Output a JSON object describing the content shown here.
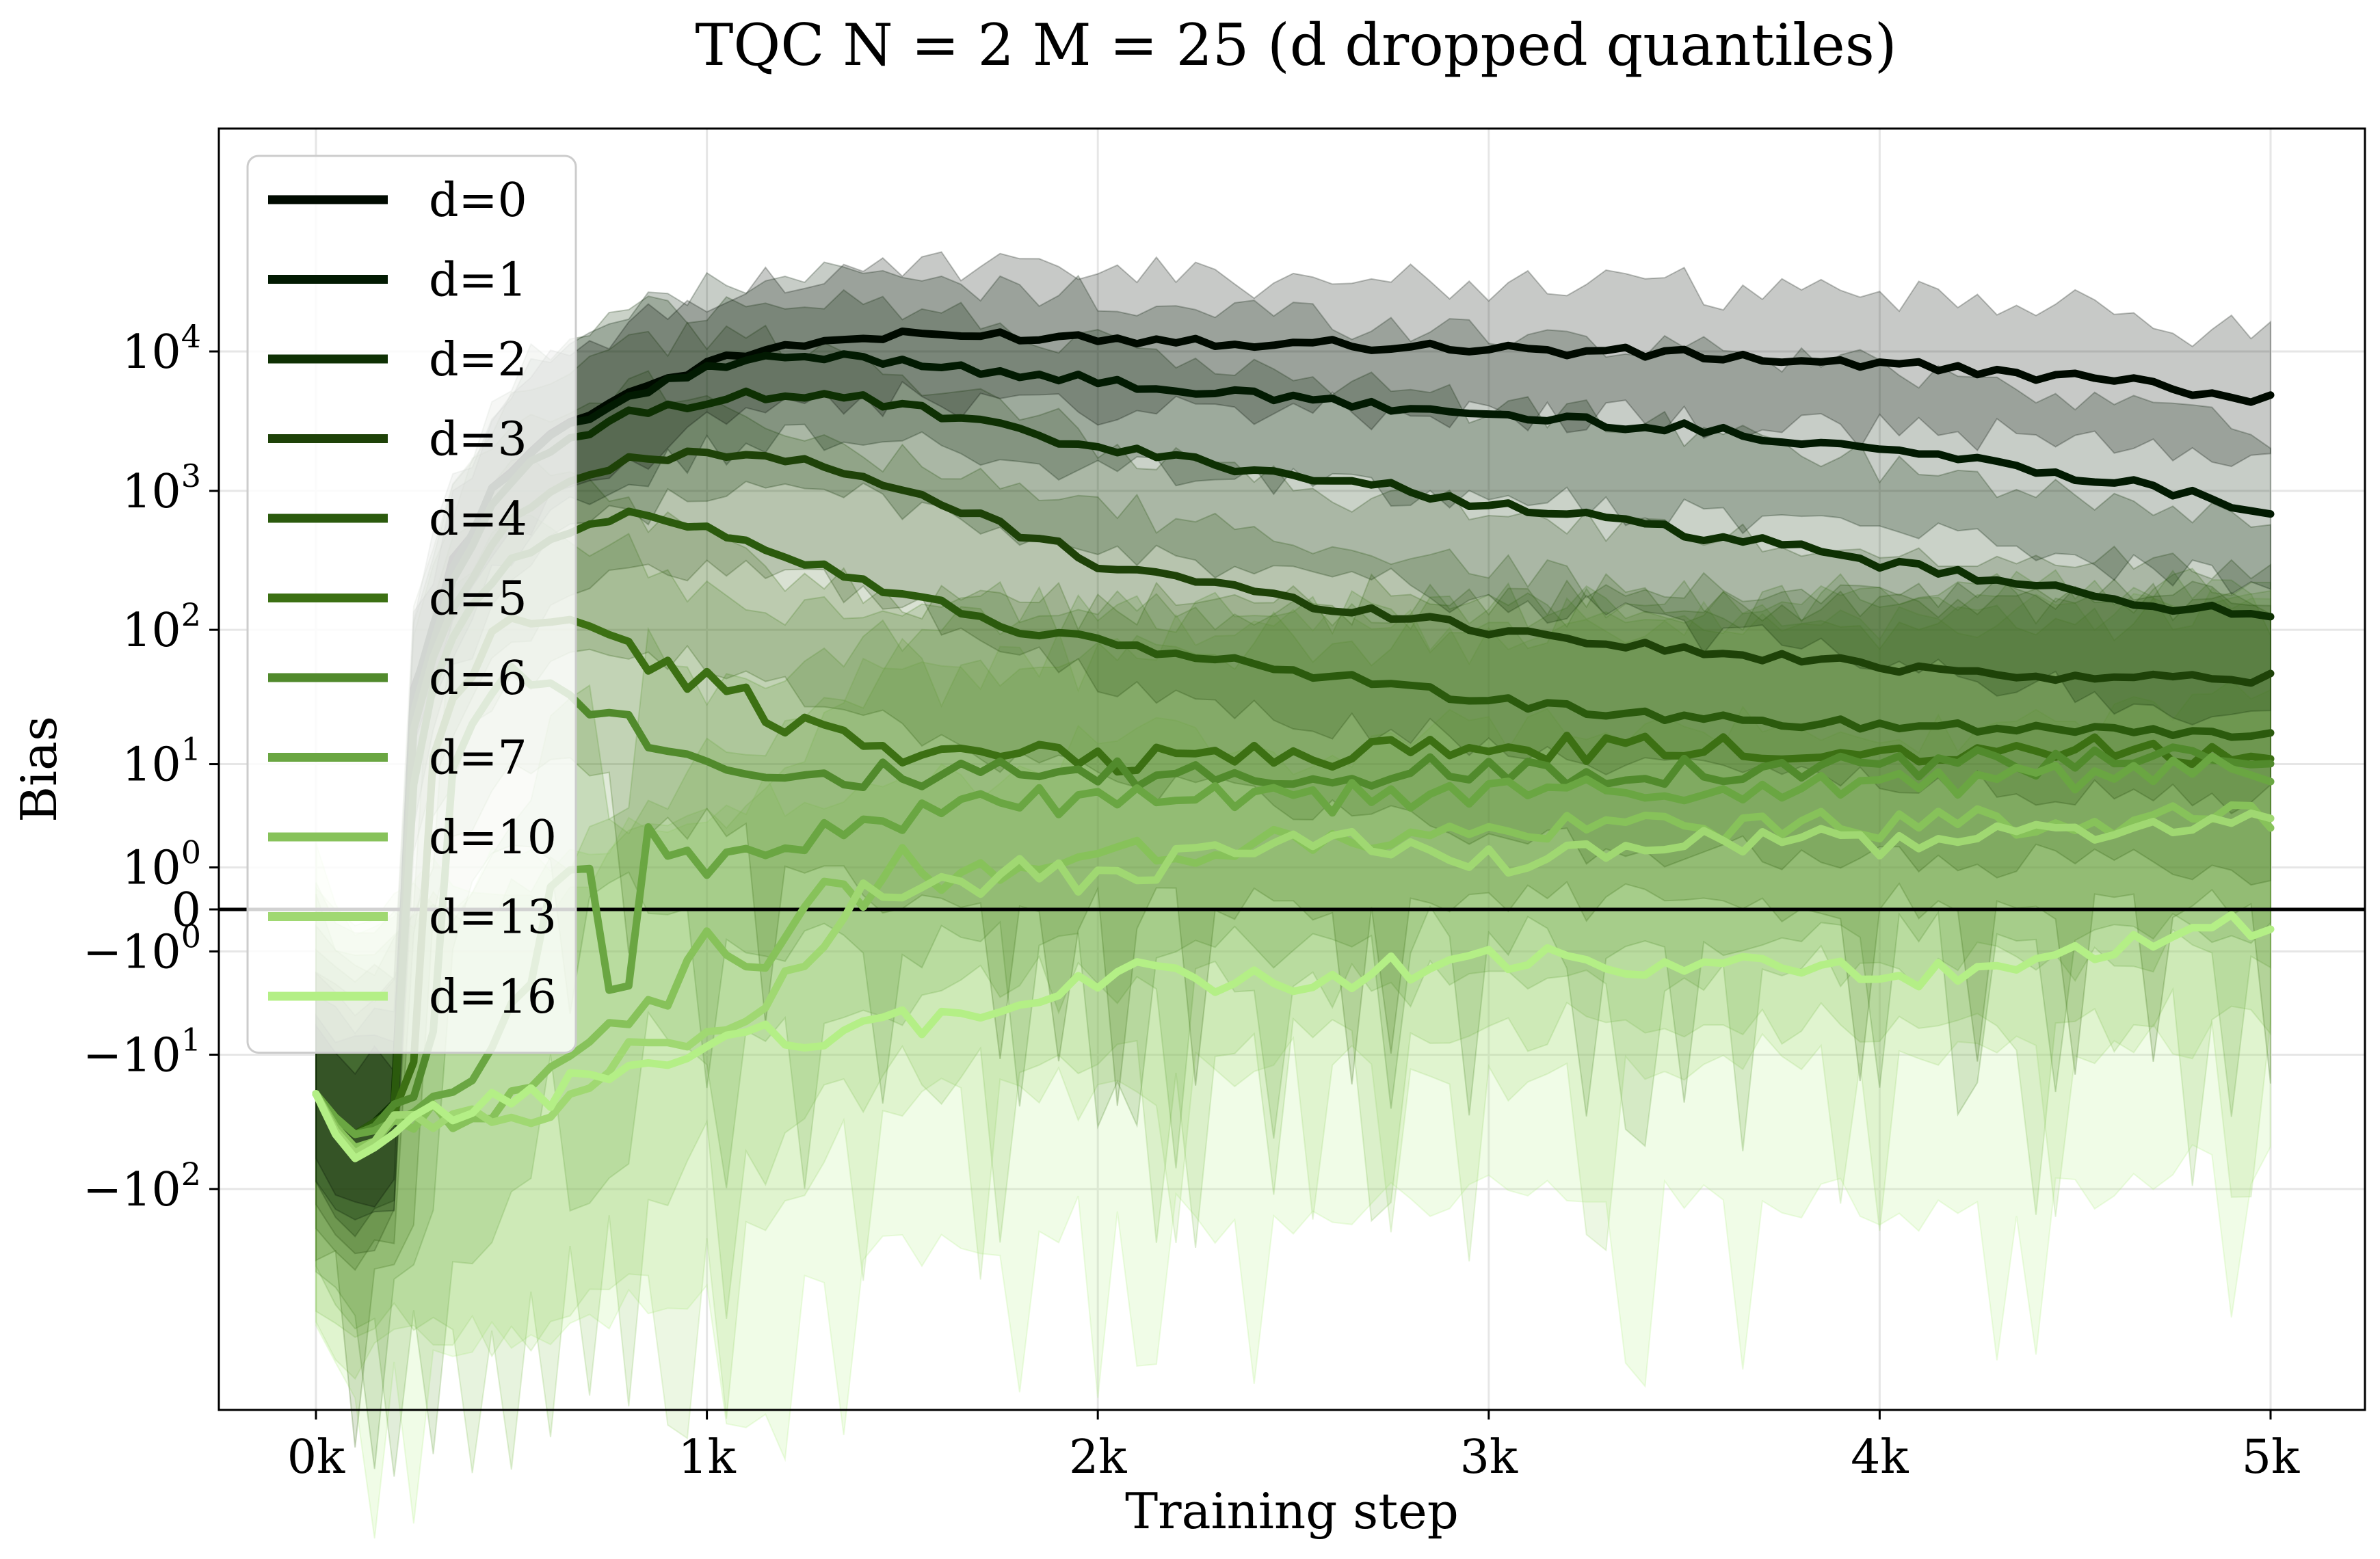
{
  "chart_data": {
    "type": "line",
    "title": "TQC N = 2 M = 25 (d dropped quantiles)",
    "xlabel": "Training step",
    "ylabel": "Bias",
    "x_scale": "linear",
    "y_scale": "symlog",
    "y_linthresh": 1,
    "xlim": [
      -250,
      5250
    ],
    "ylim": [
      -300,
      30000
    ],
    "x_ticks": [
      0,
      1000,
      2000,
      3000,
      4000,
      5000
    ],
    "x_tick_labels": [
      "0k",
      "1k",
      "2k",
      "3k",
      "4k",
      "5k"
    ],
    "y_ticks": [
      -100,
      -10,
      -1,
      0,
      1,
      10,
      100,
      1000,
      10000
    ],
    "y_tick_labels": [
      {
        "base": "−10",
        "exp": "2"
      },
      {
        "base": "−10",
        "exp": "1"
      },
      {
        "base": "−10",
        "exp": "0"
      },
      {
        "base": "0",
        "exp": ""
      },
      {
        "base": "10",
        "exp": "0"
      },
      {
        "base": "10",
        "exp": "1"
      },
      {
        "base": "10",
        "exp": "2"
      },
      {
        "base": "10",
        "exp": "3"
      },
      {
        "base": "10",
        "exp": "4"
      }
    ],
    "grid": true,
    "legend_position": "top-left",
    "zero_line": true,
    "shaded_bands": true,
    "series": [
      {
        "name": "d=0",
        "color": "#000a00",
        "x": [
          0,
          100,
          200,
          300,
          400,
          500,
          600,
          800,
          1000,
          1200,
          1400,
          1600,
          1800,
          2000,
          2500,
          3000,
          3500,
          4000,
          4500,
          5000
        ],
        "y": [
          -20,
          -40,
          -30,
          100,
          500,
          1500,
          2500,
          5000,
          8000,
          11000,
          12500,
          13000,
          13000,
          12500,
          11500,
          10500,
          9500,
          8000,
          6500,
          4500
        ]
      },
      {
        "name": "d=1",
        "color": "#021a02",
        "x": [
          0,
          100,
          200,
          300,
          400,
          500,
          600,
          800,
          1000,
          1200,
          1400,
          1600,
          1800,
          2000,
          2500,
          3000,
          3500,
          4000,
          4500,
          5000
        ],
        "y": [
          -20,
          -40,
          -25,
          100,
          500,
          1400,
          2300,
          4500,
          7500,
          9000,
          9000,
          8000,
          7000,
          6000,
          4500,
          3500,
          2800,
          2000,
          1300,
          700
        ]
      },
      {
        "name": "d=2",
        "color": "#0e3003",
        "x": [
          0,
          100,
          200,
          300,
          400,
          500,
          600,
          800,
          1000,
          1200,
          1400,
          1600,
          1800,
          2000,
          2500,
          3000,
          3500,
          4000,
          4500,
          5000
        ],
        "y": [
          -20,
          -40,
          -25,
          80,
          400,
          1100,
          1900,
          3500,
          4500,
          5000,
          4500,
          3500,
          2600,
          2000,
          1300,
          800,
          500,
          300,
          180,
          120
        ]
      },
      {
        "name": "d=3",
        "color": "#1e4208",
        "x": [
          0,
          100,
          200,
          300,
          400,
          500,
          600,
          800,
          1000,
          1100,
          1200,
          1400,
          1600,
          1800,
          2000,
          2500,
          3000,
          3500,
          4000,
          4500,
          5000
        ],
        "y": [
          -20,
          -40,
          -25,
          60,
          250,
          600,
          1000,
          1600,
          1900,
          1900,
          1700,
          1200,
          800,
          500,
          300,
          160,
          100,
          70,
          55,
          45,
          45
        ]
      },
      {
        "name": "d=4",
        "color": "#2b5a0d",
        "x": [
          0,
          100,
          200,
          300,
          400,
          500,
          600,
          700,
          800,
          900,
          1000,
          1200,
          1400,
          1600,
          1800,
          2000,
          2500,
          3000,
          3500,
          4000,
          4500,
          5000
        ],
        "y": [
          -20,
          -40,
          -25,
          40,
          150,
          300,
          450,
          550,
          650,
          650,
          550,
          350,
          220,
          150,
          100,
          80,
          50,
          30,
          22,
          20,
          19,
          17
        ]
      },
      {
        "name": "d=5",
        "color": "#3c7013",
        "x": [
          0,
          100,
          200,
          300,
          400,
          500,
          600,
          700,
          800,
          900,
          1000,
          1200,
          1400,
          1600,
          1800,
          2000,
          2500,
          3000,
          3500,
          4000,
          4500,
          5000
        ],
        "y": [
          -20,
          -40,
          -30,
          10,
          50,
          120,
          130,
          100,
          70,
          50,
          40,
          22,
          15,
          12,
          11,
          11,
          12,
          13,
          13,
          13,
          13,
          13
        ]
      },
      {
        "name": "d=6",
        "color": "#518a2c",
        "x": [
          0,
          100,
          200,
          300,
          400,
          500,
          600,
          700,
          800,
          900,
          1000,
          1200,
          1400,
          1600,
          1800,
          2000,
          2500,
          3000,
          3500,
          4000,
          4500,
          5000
        ],
        "y": [
          -20,
          -40,
          -30,
          -5,
          20,
          50,
          50,
          30,
          20,
          14,
          11,
          9,
          8,
          8,
          8,
          8,
          8,
          9,
          9,
          10,
          10,
          11
        ]
      },
      {
        "name": "d=7",
        "color": "#6aa642",
        "x": [
          0,
          100,
          200,
          300,
          400,
          500,
          600,
          700,
          750,
          800,
          850,
          900,
          950,
          1000,
          1050,
          1100,
          1200,
          1400,
          1600,
          1800,
          2000,
          2500,
          3000,
          3500,
          4000,
          4500,
          5000
        ],
        "y": [
          -20,
          -40,
          -35,
          -25,
          -15,
          -5,
          0.5,
          1.5,
          -2.5,
          -2,
          3,
          1,
          2,
          0.7,
          2,
          1.5,
          2,
          3,
          4,
          5,
          5,
          5,
          6,
          6,
          7,
          8,
          9
        ]
      },
      {
        "name": "d=10",
        "color": "#87c25a",
        "x": [
          0,
          100,
          200,
          300,
          400,
          500,
          600,
          700,
          800,
          900,
          1000,
          1100,
          1200,
          1300,
          1400,
          1500,
          1600,
          1700,
          1800,
          2000,
          2500,
          3000,
          3500,
          4000,
          4500,
          5000
        ],
        "y": [
          -20,
          -50,
          -40,
          -30,
          -28,
          -20,
          -10,
          -8,
          -6,
          -3,
          -0.6,
          -1.5,
          -0.8,
          0.6,
          0.3,
          1.2,
          0.4,
          0.8,
          1.2,
          1.4,
          2,
          2.5,
          3,
          3,
          3.3,
          3.5
        ]
      },
      {
        "name": "d=13",
        "color": "#a0d872",
        "x": [
          0,
          100,
          200,
          300,
          400,
          500,
          600,
          700,
          800,
          900,
          1000,
          1100,
          1200,
          1300,
          1400,
          1500,
          1600,
          1700,
          1800,
          1900,
          2000,
          2200,
          2400,
          2600,
          2800,
          3000,
          3200,
          3500,
          4000,
          4500,
          5000
        ],
        "y": [
          -20,
          -55,
          -35,
          -30,
          -30,
          -30,
          -25,
          -15,
          -10,
          -8,
          -6,
          -4,
          -2,
          -0.5,
          0.2,
          0.4,
          0.5,
          0.6,
          0.8,
          0.7,
          0.5,
          1.2,
          2,
          2,
          1.5,
          1.2,
          1.5,
          2,
          2,
          2.5,
          3.5
        ]
      },
      {
        "name": "d=16",
        "color": "#b4ef86",
        "x": [
          0,
          100,
          200,
          300,
          400,
          500,
          600,
          700,
          800,
          900,
          1000,
          1200,
          1400,
          1600,
          1800,
          2000,
          2200,
          2400,
          2600,
          2800,
          3000,
          3200,
          3400,
          3600,
          3800,
          4000,
          4200,
          4400,
          4600,
          4800,
          4900,
          5000
        ],
        "y": [
          -20,
          -60,
          -40,
          -30,
          -25,
          -22,
          -20,
          -15,
          -12,
          -10,
          -9,
          -7,
          -6,
          -5,
          -4,
          -2,
          -2,
          -2.5,
          -2,
          -1.5,
          -1.2,
          -1.5,
          -1.8,
          -1.6,
          -1.5,
          -1.8,
          -2.2,
          -1.4,
          -1.0,
          -0.7,
          -0.3,
          -0.5
        ]
      }
    ]
  }
}
